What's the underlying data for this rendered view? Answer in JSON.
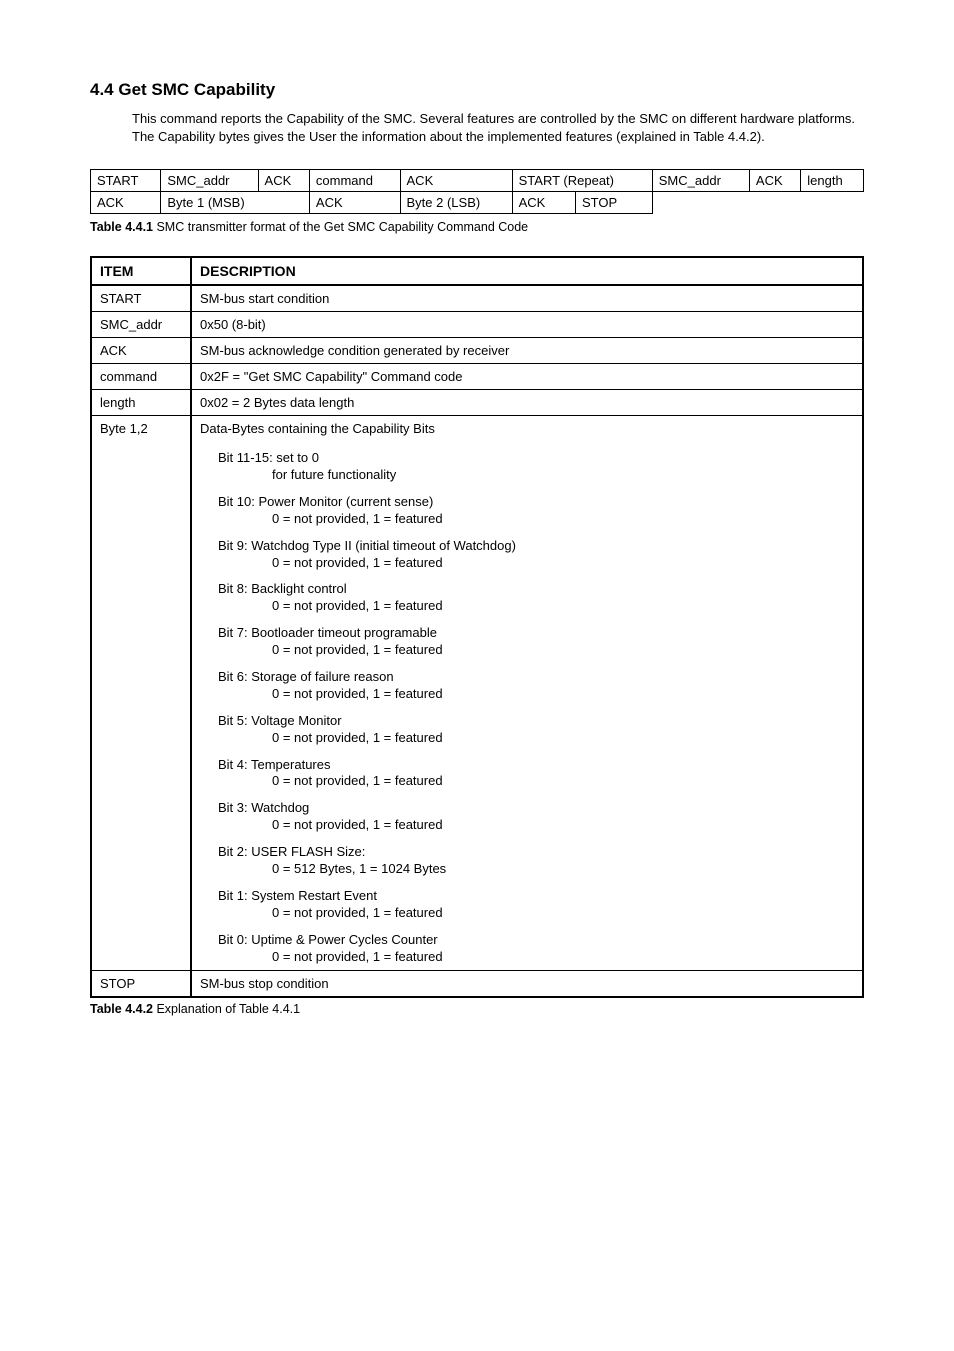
{
  "heading": "4.4  Get SMC Capability",
  "intro": "This command reports the Capability of the SMC. Several features are controlled by the SMC on different hardware platforms. The Capability bytes gives the User the information about the implemented features (explained in Table 4.4.2).",
  "fmt": {
    "row1": [
      "START",
      "SMC_addr",
      "ACK",
      "command",
      "ACK",
      "START (Repeat)",
      "SMC_addr",
      "ACK",
      "length"
    ],
    "row2": [
      "ACK",
      "Byte 1 (MSB)",
      "ACK",
      "Byte 2 (LSB)",
      "ACK",
      "STOP",
      ""
    ]
  },
  "caption1_label": "Table 4.4.1",
  "caption1_text": " SMC transmitter format of the Get SMC Capability Command Code",
  "desc_header": {
    "c1": "ITEM",
    "c2": "DESCRIPTION"
  },
  "rows": {
    "r1": {
      "item": "START",
      "desc": "SM-bus start condition"
    },
    "r2": {
      "item": "SMC_addr",
      "desc": "0x50 (8-bit)"
    },
    "r3": {
      "item": "ACK",
      "desc": "SM-bus acknowledge condition generated by receiver"
    },
    "r4": {
      "item": "command",
      "desc": "0x2F = \"Get SMC Capability\" Command code"
    },
    "r5": {
      "item": "length",
      "desc": "0x02 = 2 Bytes data length"
    },
    "r6": {
      "item": "Byte 1,2",
      "lead": "Data-Bytes containing the Capability Bits",
      "bits": {
        "b15": {
          "t": "Bit 11-15: set to 0",
          "v": "for future functionality"
        },
        "b10": {
          "t": "Bit 10: Power Monitor (current sense)",
          "v": "0 = not provided, 1 = featured"
        },
        "b9": {
          "t": "Bit 9:  Watchdog Type II (initial timeout of Watchdog)",
          "v": "0 = not provided, 1 = featured"
        },
        "b8": {
          "t": "Bit 8:  Backlight control",
          "v": "0 = not provided, 1 = featured"
        },
        "b7": {
          "t": "Bit 7:  Bootloader timeout programable",
          "v": "0 = not provided, 1 = featured"
        },
        "b6": {
          "t": "Bit 6:  Storage of failure reason",
          "v": "0 = not provided, 1 = featured"
        },
        "b5": {
          "t": "Bit 5:  Voltage Monitor",
          "v": "0 = not provided, 1 = featured"
        },
        "b4": {
          "t": "Bit 4:  Temperatures",
          "v": "0 = not provided, 1 = featured"
        },
        "b3": {
          "t": "Bit 3:  Watchdog",
          "v": "0 = not provided, 1 = featured"
        },
        "b2": {
          "t": "Bit 2:  USER FLASH Size:",
          "v": "0 = 512 Bytes, 1 = 1024 Bytes"
        },
        "b1": {
          "t": "Bit 1:  System Restart Event",
          "v": "0 = not provided, 1 = featured"
        },
        "b0": {
          "t": "Bit 0:  Uptime & Power Cycles Counter",
          "v": "0 = not provided, 1 = featured"
        }
      }
    },
    "r7": {
      "item": "STOP",
      "desc": "SM-bus stop condition"
    }
  },
  "caption2_label": "Table 4.4.2",
  "caption2_text": " Explanation of Table 4.4.1"
}
